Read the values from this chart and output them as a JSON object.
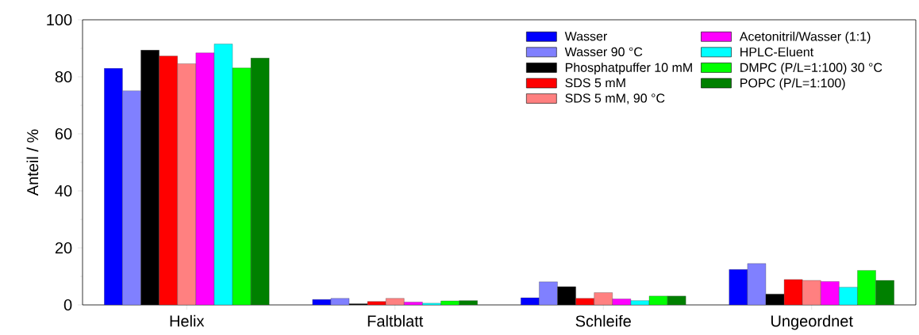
{
  "chart_data": {
    "type": "bar",
    "ylabel": "Anteil / %",
    "categories": [
      "Helix",
      "Faltblatt",
      "Schleife",
      "Ungeordnet"
    ],
    "ylim": [
      0,
      100
    ],
    "yticks": [
      0,
      20,
      40,
      60,
      80,
      100
    ],
    "legend": "top right",
    "series": [
      {
        "name": "Wasser",
        "color": "#0000ff",
        "values": [
          83.0,
          1.9,
          2.5,
          12.4
        ]
      },
      {
        "name": "Wasser 90 °C",
        "color": "#8080ff",
        "values": [
          75.1,
          2.3,
          8.1,
          14.5
        ]
      },
      {
        "name": "Phosphatpuffer 10 mM",
        "color": "#000000",
        "values": [
          89.4,
          0.4,
          6.4,
          3.8
        ]
      },
      {
        "name": "SDS 5 mM",
        "color": "#ff0000",
        "values": [
          87.3,
          1.2,
          2.3,
          8.9
        ]
      },
      {
        "name": "SDS 5 mM, 90 °C",
        "color": "#ff8080",
        "values": [
          84.6,
          2.3,
          4.3,
          8.6
        ]
      },
      {
        "name": "Acetonitril/Wasser (1:1)",
        "color": "#ff00ff",
        "values": [
          88.4,
          1.0,
          2.1,
          8.2
        ]
      },
      {
        "name": "HPLC-Eluent",
        "color": "#00ffff",
        "values": [
          91.5,
          0.6,
          1.5,
          6.2
        ]
      },
      {
        "name": "DMPC (P/L=1:100) 30 °C",
        "color": "#00ff00",
        "values": [
          83.1,
          1.4,
          3.1,
          12.1
        ]
      },
      {
        "name": "POPC (P/L=1:100)",
        "color": "#008000",
        "values": [
          86.6,
          1.5,
          3.1,
          8.6
        ]
      }
    ]
  }
}
